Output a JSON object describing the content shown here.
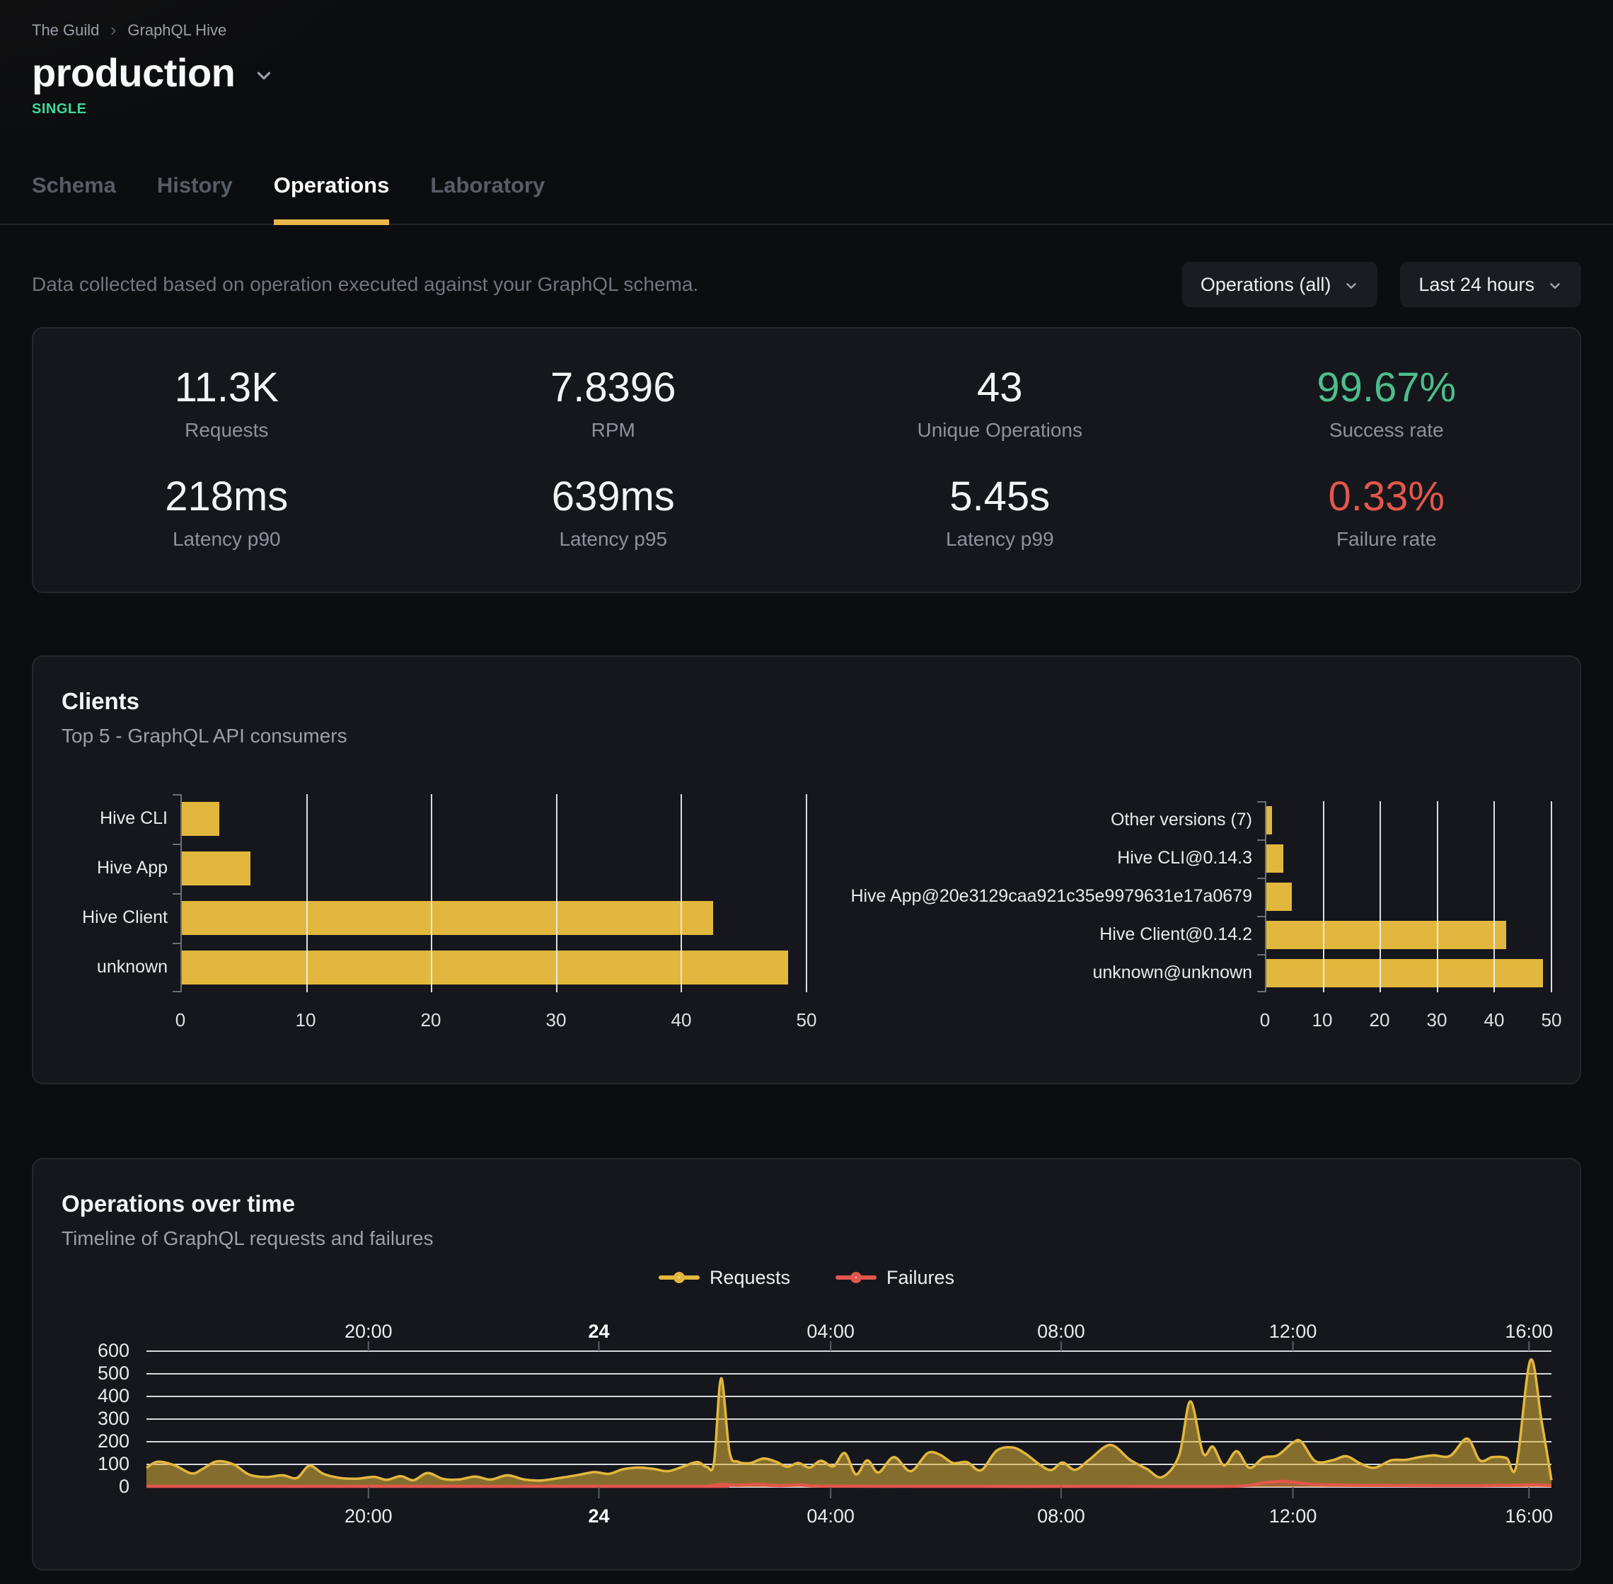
{
  "breadcrumb": {
    "org": "The Guild",
    "project": "GraphQL Hive"
  },
  "header": {
    "target_name": "production",
    "target_type_badge": "SINGLE"
  },
  "tabs": [
    {
      "label": "Schema",
      "active": false
    },
    {
      "label": "History",
      "active": false
    },
    {
      "label": "Operations",
      "active": true
    },
    {
      "label": "Laboratory",
      "active": false
    }
  ],
  "filters": {
    "description": "Data collected based on operation executed against your GraphQL schema.",
    "operations_dropdown": "Operations (all)",
    "period_dropdown": "Last 24 hours"
  },
  "stats": [
    {
      "value": "11.3K",
      "label": "Requests"
    },
    {
      "value": "7.8396",
      "label": "RPM"
    },
    {
      "value": "43",
      "label": "Unique Operations"
    },
    {
      "value": "99.67%",
      "label": "Success rate",
      "color": "#4dbe8b"
    },
    {
      "value": "218ms",
      "label": "Latency p90"
    },
    {
      "value": "639ms",
      "label": "Latency p95"
    },
    {
      "value": "5.45s",
      "label": "Latency p99"
    },
    {
      "value": "0.33%",
      "label": "Failure rate",
      "color": "#e4564c"
    }
  ],
  "clients_card": {
    "title": "Clients",
    "subtitle": "Top 5 - GraphQL API consumers"
  },
  "operations_card": {
    "title": "Operations over time",
    "subtitle": "Timeline of GraphQL requests and failures",
    "legend": [
      {
        "label": "Requests",
        "color": "#e2b73d"
      },
      {
        "label": "Failures",
        "color": "#e2574b"
      }
    ]
  },
  "colors": {
    "page_bg": "#0c0d10",
    "card_bg": "#15171c",
    "card_border": "#25272c",
    "accent_yellow": "#e9b64a",
    "bar_yellow": "#e2b73d",
    "failure_red": "#e2574b",
    "success_green": "#4dbe8b",
    "badge_green": "#3fd79b",
    "gridline": "#eceef1",
    "axis_gray": "#6b7077"
  },
  "chart_data": [
    {
      "type": "bar",
      "orientation": "horizontal",
      "categories": [
        "Hive CLI",
        "Hive App",
        "Hive Client",
        "unknown"
      ],
      "values": [
        3,
        5.5,
        42.5,
        48.5
      ],
      "xlim": [
        0,
        50
      ],
      "x_ticks": [
        0,
        10,
        20,
        30,
        40,
        50
      ],
      "bar_color": "#e2b73d",
      "grid": true
    },
    {
      "type": "bar",
      "orientation": "horizontal",
      "categories": [
        "Other versions (7)",
        "Hive CLI@0.14.3",
        "Hive App@20e3129caa921c35e9979631e17a0679",
        "Hive Client@0.14.2",
        "unknown@unknown"
      ],
      "values": [
        1,
        3,
        4.5,
        42,
        48.5
      ],
      "xlim": [
        0,
        50
      ],
      "x_ticks": [
        0,
        10,
        20,
        30,
        40,
        50
      ],
      "bar_color": "#e2b73d",
      "grid": true
    },
    {
      "type": "area",
      "ylim": [
        0,
        600
      ],
      "y_ticks": [
        0,
        100,
        200,
        300,
        400,
        500,
        600
      ],
      "x_ticks": [
        {
          "pos": 0.158,
          "label": "20:00",
          "bold": false
        },
        {
          "pos": 0.322,
          "label": "24",
          "bold": true
        },
        {
          "pos": 0.487,
          "label": "04:00",
          "bold": false
        },
        {
          "pos": 0.651,
          "label": "08:00",
          "bold": false
        },
        {
          "pos": 0.816,
          "label": "12:00",
          "bold": false
        },
        {
          "pos": 0.984,
          "label": "16:00",
          "bold": false
        }
      ],
      "grid": "horizontal",
      "legend_position": "top-center",
      "series": [
        {
          "name": "Requests",
          "color": "#e2b73d",
          "fill_opacity": 0.55,
          "points": [
            [
              0,
              85
            ],
            [
              0.008,
              112
            ],
            [
              0.02,
              96
            ],
            [
              0.032,
              60
            ],
            [
              0.04,
              80
            ],
            [
              0.05,
              113
            ],
            [
              0.062,
              100
            ],
            [
              0.073,
              55
            ],
            [
              0.085,
              44
            ],
            [
              0.097,
              52
            ],
            [
              0.107,
              40
            ],
            [
              0.116,
              94
            ],
            [
              0.126,
              58
            ],
            [
              0.138,
              40
            ],
            [
              0.15,
              37
            ],
            [
              0.162,
              45
            ],
            [
              0.171,
              32
            ],
            [
              0.181,
              48
            ],
            [
              0.19,
              30
            ],
            [
              0.2,
              62
            ],
            [
              0.211,
              36
            ],
            [
              0.222,
              33
            ],
            [
              0.234,
              46
            ],
            [
              0.245,
              33
            ],
            [
              0.257,
              52
            ],
            [
              0.269,
              33
            ],
            [
              0.281,
              29
            ],
            [
              0.294,
              40
            ],
            [
              0.308,
              54
            ],
            [
              0.319,
              66
            ],
            [
              0.329,
              58
            ],
            [
              0.339,
              78
            ],
            [
              0.35,
              86
            ],
            [
              0.361,
              80
            ],
            [
              0.371,
              70
            ],
            [
              0.381,
              88
            ],
            [
              0.392,
              110
            ],
            [
              0.399,
              88
            ],
            [
              0.404,
              110
            ],
            [
              0.409,
              480
            ],
            [
              0.415,
              155
            ],
            [
              0.421,
              112
            ],
            [
              0.43,
              106
            ],
            [
              0.439,
              126
            ],
            [
              0.448,
              112
            ],
            [
              0.456,
              90
            ],
            [
              0.464,
              106
            ],
            [
              0.472,
              86
            ],
            [
              0.48,
              116
            ],
            [
              0.489,
              92
            ],
            [
              0.497,
              150
            ],
            [
              0.505,
              56
            ],
            [
              0.513,
              118
            ],
            [
              0.521,
              64
            ],
            [
              0.532,
              132
            ],
            [
              0.544,
              70
            ],
            [
              0.556,
              150
            ],
            [
              0.565,
              142
            ],
            [
              0.574,
              106
            ],
            [
              0.584,
              110
            ],
            [
              0.594,
              74
            ],
            [
              0.605,
              160
            ],
            [
              0.616,
              175
            ],
            [
              0.625,
              150
            ],
            [
              0.636,
              98
            ],
            [
              0.644,
              75
            ],
            [
              0.652,
              108
            ],
            [
              0.661,
              76
            ],
            [
              0.671,
              120
            ],
            [
              0.686,
              186
            ],
            [
              0.7,
              120
            ],
            [
              0.712,
              80
            ],
            [
              0.723,
              44
            ],
            [
              0.735,
              140
            ],
            [
              0.743,
              378
            ],
            [
              0.752,
              150
            ],
            [
              0.759,
              178
            ],
            [
              0.767,
              95
            ],
            [
              0.776,
              158
            ],
            [
              0.785,
              85
            ],
            [
              0.795,
              130
            ],
            [
              0.805,
              140
            ],
            [
              0.816,
              196
            ],
            [
              0.822,
              200
            ],
            [
              0.832,
              114
            ],
            [
              0.844,
              118
            ],
            [
              0.854,
              136
            ],
            [
              0.864,
              104
            ],
            [
              0.874,
              85
            ],
            [
              0.886,
              118
            ],
            [
              0.896,
              120
            ],
            [
              0.906,
              132
            ],
            [
              0.916,
              140
            ],
            [
              0.928,
              138
            ],
            [
              0.94,
              214
            ],
            [
              0.949,
              118
            ],
            [
              0.958,
              132
            ],
            [
              0.968,
              128
            ],
            [
              0.975,
              92
            ],
            [
              0.985,
              560
            ],
            [
              0.993,
              290
            ],
            [
              1,
              30
            ]
          ]
        },
        {
          "name": "Failures",
          "color": "#e2574b",
          "fill_opacity": 0.3,
          "points": [
            [
              0,
              3
            ],
            [
              0.38,
              3
            ],
            [
              0.399,
              4
            ],
            [
              0.409,
              12
            ],
            [
              0.42,
              8
            ],
            [
              0.435,
              12
            ],
            [
              0.45,
              6
            ],
            [
              0.465,
              10
            ],
            [
              0.48,
              4
            ],
            [
              0.55,
              3
            ],
            [
              0.7,
              3
            ],
            [
              0.775,
              4
            ],
            [
              0.795,
              18
            ],
            [
              0.81,
              25
            ],
            [
              0.83,
              12
            ],
            [
              0.855,
              8
            ],
            [
              0.88,
              7
            ],
            [
              0.92,
              6
            ],
            [
              0.95,
              6
            ],
            [
              0.975,
              8
            ],
            [
              0.99,
              10
            ],
            [
              1,
              6
            ]
          ]
        }
      ]
    }
  ]
}
